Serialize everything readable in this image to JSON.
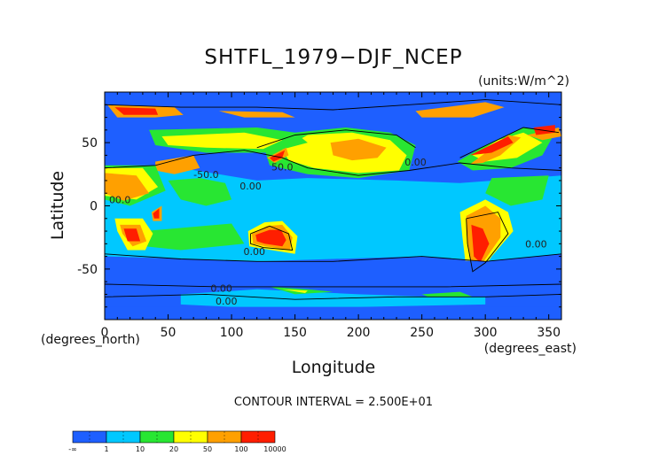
{
  "chart_data": {
    "type": "heatmap",
    "title": "SHTFL_1979−DJF_NCEP",
    "units_note": "(units:W/m^2)",
    "xlabel": "Longitude",
    "ylabel": "Latitude",
    "x_unit_note": "(degrees_east)",
    "y_unit_note": "(degrees_north)",
    "xlim": [
      0,
      360
    ],
    "ylim": [
      -90,
      90
    ],
    "x_ticks": [
      0,
      50,
      100,
      150,
      200,
      250,
      300,
      350
    ],
    "y_ticks": [
      -50,
      0,
      50
    ],
    "contour_interval_text": "CONTOUR INTERVAL = 2.500E+01",
    "contour_labels": [
      {
        "text": "50.0",
        "lon": 140,
        "lat": 28
      },
      {
        "text": "0.00",
        "lon": 245,
        "lat": 32
      },
      {
        "text": "0.00",
        "lon": 115,
        "lat": 13
      },
      {
        "text": "-50.0",
        "lon": 80,
        "lat": 22
      },
      {
        "text": "00.0",
        "lon": 12,
        "lat": 2
      },
      {
        "text": "0.00",
        "lon": 118,
        "lat": -39
      },
      {
        "text": "0.00",
        "lon": 340,
        "lat": -33
      },
      {
        "text": "0.00",
        "lon": 92,
        "lat": -68
      },
      {
        "text": "0.00",
        "lon": 96,
        "lat": -78
      }
    ],
    "colorbar": {
      "bins": [
        {
          "color": "#1e5fff"
        },
        {
          "color": "#00c8ff"
        },
        {
          "color": "#28e632"
        },
        {
          "color": "#ffff00"
        },
        {
          "color": "#ffa000"
        },
        {
          "color": "#ff1e00"
        }
      ],
      "tick_labels": [
        "-∞",
        "1",
        "10",
        "20",
        "50",
        "100",
        "10000"
      ]
    }
  }
}
